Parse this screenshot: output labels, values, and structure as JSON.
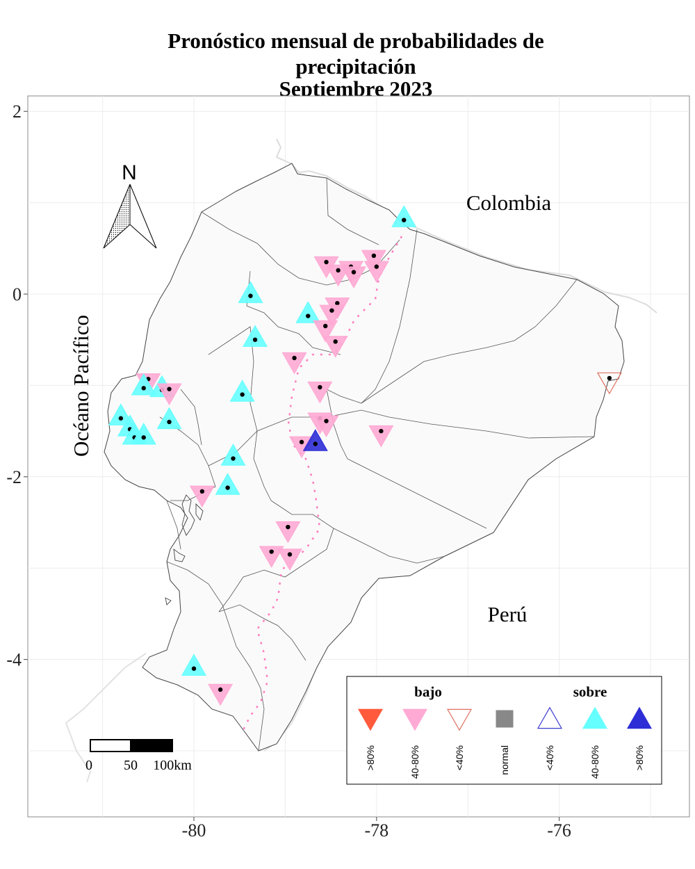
{
  "title": {
    "line1": "Pronóstico mensual de probabilidades de",
    "line2": "precipitación",
    "line3": "Septiembre 2023"
  },
  "axes": {
    "x_ticks": [
      {
        "lon": -80,
        "label": "-80"
      },
      {
        "lon": -78,
        "label": "-78"
      },
      {
        "lon": -76,
        "label": "-76"
      }
    ],
    "y_ticks": [
      {
        "lat": 2,
        "label": "2"
      },
      {
        "lat": 0,
        "label": "0"
      },
      {
        "lat": -2,
        "label": "-2"
      },
      {
        "lat": -4,
        "label": "-4"
      }
    ],
    "x_range": [
      -81.8,
      -74.5
    ],
    "y_range": [
      -5.8,
      2.2
    ]
  },
  "labels": {
    "colombia": "Colombia",
    "peru": "Perú",
    "ocean": "Océano Pacífico"
  },
  "north_arrow": {
    "label": "N"
  },
  "scale_bar": {
    "labels": [
      "0",
      "50",
      "100km"
    ]
  },
  "legend": {
    "bajo_header": "bajo",
    "sobre_header": "sobre",
    "items": [
      {
        "key": "bajo_gt80",
        "label": ">80%",
        "shape": "triangle-down",
        "fill": "#ff5a3c",
        "stroke": "#ff5a3c"
      },
      {
        "key": "bajo_40_80",
        "label": "40-80%",
        "shape": "triangle-down",
        "fill": "#ffaad4",
        "stroke": "#ffaad4"
      },
      {
        "key": "bajo_lt40",
        "label": "<40%",
        "shape": "triangle-down",
        "fill": "none",
        "stroke": "#e07060"
      },
      {
        "key": "normal",
        "label": "normal",
        "shape": "square",
        "fill": "#888888",
        "stroke": "#888888"
      },
      {
        "key": "sobre_lt40",
        "label": "<40%",
        "shape": "triangle-up",
        "fill": "none",
        "stroke": "#3a3ad0"
      },
      {
        "key": "sobre_40_80",
        "label": "40-80%",
        "shape": "triangle-up",
        "fill": "#66ffff",
        "stroke": "#66ffff"
      },
      {
        "key": "sobre_gt80",
        "label": ">80%",
        "shape": "triangle-up",
        "fill": "#2e2ed6",
        "stroke": "#2e2ed6"
      }
    ]
  },
  "stations": [
    {
      "lon": -77.7,
      "lat": 0.81,
      "cat": "sobre_40_80"
    },
    {
      "lon": -78.55,
      "lat": 0.35,
      "cat": "bajo_40_80"
    },
    {
      "lon": -78.42,
      "lat": 0.26,
      "cat": "bajo_40_80"
    },
    {
      "lon": -78.28,
      "lat": 0.3,
      "cat": "bajo_40_80"
    },
    {
      "lon": -78.25,
      "lat": 0.24,
      "cat": "bajo_40_80"
    },
    {
      "lon": -78.03,
      "lat": 0.42,
      "cat": "bajo_40_80"
    },
    {
      "lon": -78.0,
      "lat": 0.3,
      "cat": "bajo_40_80"
    },
    {
      "lon": -79.38,
      "lat": -0.02,
      "cat": "sobre_40_80"
    },
    {
      "lon": -78.75,
      "lat": -0.24,
      "cat": "sobre_40_80"
    },
    {
      "lon": -78.43,
      "lat": -0.1,
      "cat": "bajo_40_80"
    },
    {
      "lon": -78.49,
      "lat": -0.18,
      "cat": "bajo_40_80"
    },
    {
      "lon": -78.56,
      "lat": -0.35,
      "cat": "bajo_40_80"
    },
    {
      "lon": -78.45,
      "lat": -0.52,
      "cat": "bajo_40_80"
    },
    {
      "lon": -79.33,
      "lat": -0.5,
      "cat": "sobre_40_80"
    },
    {
      "lon": -78.9,
      "lat": -0.7,
      "cat": "bajo_40_80"
    },
    {
      "lon": -80.5,
      "lat": -0.93,
      "cat": "bajo_40_80"
    },
    {
      "lon": -80.55,
      "lat": -1.03,
      "cat": "sobre_40_80"
    },
    {
      "lon": -80.35,
      "lat": -1.05,
      "cat": "sobre_40_80"
    },
    {
      "lon": -80.27,
      "lat": -1.04,
      "cat": "bajo_40_80"
    },
    {
      "lon": -79.47,
      "lat": -1.1,
      "cat": "sobre_40_80"
    },
    {
      "lon": -78.62,
      "lat": -1.02,
      "cat": "bajo_40_80"
    },
    {
      "lon": -80.8,
      "lat": -1.36,
      "cat": "sobre_40_80"
    },
    {
      "lon": -80.7,
      "lat": -1.48,
      "cat": "sobre_40_80"
    },
    {
      "lon": -80.65,
      "lat": -1.57,
      "cat": "sobre_40_80"
    },
    {
      "lon": -80.55,
      "lat": -1.57,
      "cat": "sobre_40_80"
    },
    {
      "lon": -80.27,
      "lat": -1.4,
      "cat": "sobre_40_80"
    },
    {
      "lon": -78.62,
      "lat": -1.36,
      "cat": "bajo_40_80"
    },
    {
      "lon": -78.55,
      "lat": -1.39,
      "cat": "bajo_40_80"
    },
    {
      "lon": -77.95,
      "lat": -1.5,
      "cat": "bajo_40_80"
    },
    {
      "lon": -78.82,
      "lat": -1.62,
      "cat": "bajo_40_80"
    },
    {
      "lon": -78.67,
      "lat": -1.64,
      "cat": "sobre_gt80"
    },
    {
      "lon": -79.57,
      "lat": -1.8,
      "cat": "sobre_40_80"
    },
    {
      "lon": -79.63,
      "lat": -2.12,
      "cat": "sobre_40_80"
    },
    {
      "lon": -79.91,
      "lat": -2.16,
      "cat": "bajo_40_80"
    },
    {
      "lon": -78.97,
      "lat": -2.55,
      "cat": "bajo_40_80"
    },
    {
      "lon": -79.15,
      "lat": -2.82,
      "cat": "bajo_40_80"
    },
    {
      "lon": -78.95,
      "lat": -2.85,
      "cat": "bajo_40_80"
    },
    {
      "lon": -80.0,
      "lat": -4.1,
      "cat": "sobre_40_80"
    },
    {
      "lon": -79.71,
      "lat": -4.33,
      "cat": "bajo_40_80"
    },
    {
      "lon": -75.45,
      "lat": -0.92,
      "cat": "bajo_lt40"
    }
  ]
}
